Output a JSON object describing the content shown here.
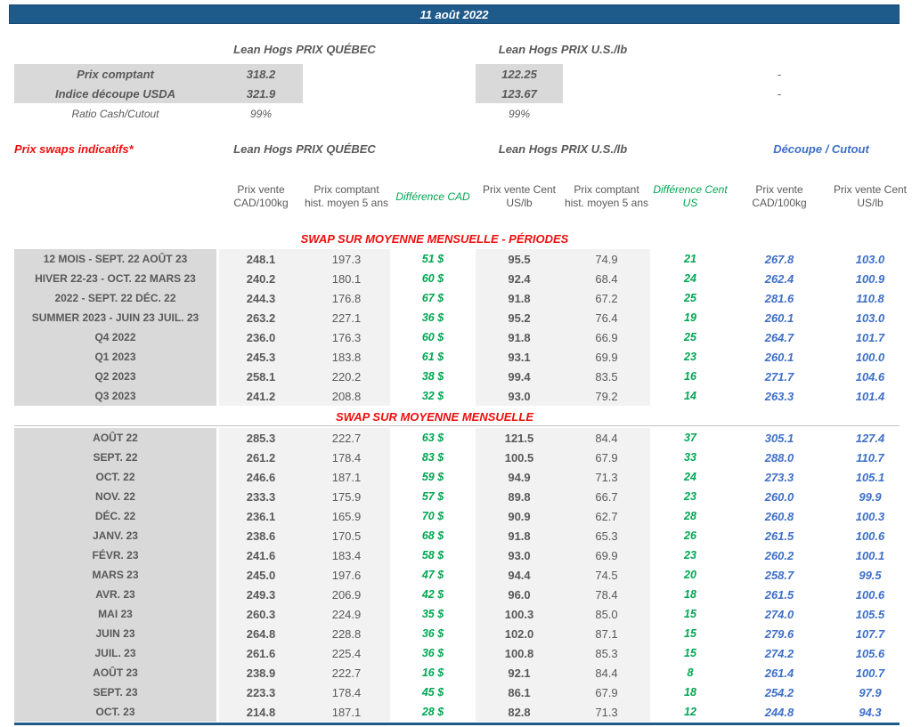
{
  "title_bar": {
    "date": "11 août 2022"
  },
  "colors": {
    "header_bar_blue": "#1E5A8A",
    "section_red": "#EE0E0E",
    "difference_green": "#00A651",
    "cutout_blue": "#3E6FC7",
    "text_gray": "#595959",
    "label_bg": "#D9D9D9",
    "value_bg": "#F2F2F2"
  },
  "summary": {
    "quebec_header": "Lean Hogs PRIX QUÉBEC",
    "us_header": "Lean Hogs PRIX U.S./lb",
    "rows": [
      {
        "label": "Prix comptant",
        "quebec": "318.2",
        "us": "122.25",
        "cutout": "-"
      },
      {
        "label": "Indice découpe USDA",
        "quebec": "321.9",
        "us": "123.67",
        "cutout": "-"
      },
      {
        "label": "Ratio Cash/Cutout",
        "quebec": "99%",
        "us": "99%",
        "cutout": ""
      }
    ]
  },
  "swaps": {
    "title": "Prix swaps indicatifs*",
    "quebec_header": "Lean Hogs PRIX QUÉBEC",
    "us_header": "Lean Hogs PRIX U.S./lb",
    "cutout_header": "Découpe / Cutout",
    "columns": [
      "Prix vente CAD/100kg",
      "Prix comptant hist. moyen 5 ans",
      "Différence CAD",
      "Prix vente Cent US/lb",
      "Prix comptant hist. moyen 5 ans",
      "Différence Cent US",
      "Prix vente CAD/100kg",
      "Prix vente Cent US/lb"
    ],
    "sections": [
      {
        "title": "SWAP SUR MOYENNE MENSUELLE - PÉRIODES",
        "rows": [
          {
            "label": "12 MOIS - SEPT. 22 AOÛT 23",
            "values": [
              "248.1",
              "197.3",
              "51 $",
              "95.5",
              "74.9",
              "21",
              "267.8",
              "103.0"
            ]
          },
          {
            "label": "HIVER 22-23 - OCT. 22 MARS 23",
            "values": [
              "240.2",
              "180.1",
              "60 $",
              "92.4",
              "68.4",
              "24",
              "262.4",
              "100.9"
            ]
          },
          {
            "label": "2022 - SEPT. 22 DÉC. 22",
            "values": [
              "244.3",
              "176.8",
              "67 $",
              "91.8",
              "67.2",
              "25",
              "281.6",
              "110.8"
            ]
          },
          {
            "label": "SUMMER 2023 - JUIN 23 JUIL. 23",
            "values": [
              "263.2",
              "227.1",
              "36 $",
              "95.2",
              "76.4",
              "19",
              "260.1",
              "103.0"
            ]
          },
          {
            "label": "Q4 2022",
            "values": [
              "236.0",
              "176.3",
              "60 $",
              "91.8",
              "66.9",
              "25",
              "264.7",
              "101.7"
            ]
          },
          {
            "label": "Q1 2023",
            "values": [
              "245.3",
              "183.8",
              "61 $",
              "93.1",
              "69.9",
              "23",
              "260.1",
              "100.0"
            ]
          },
          {
            "label": "Q2 2023",
            "values": [
              "258.1",
              "220.2",
              "38 $",
              "99.4",
              "83.5",
              "16",
              "271.7",
              "104.6"
            ]
          },
          {
            "label": "Q3 2023",
            "values": [
              "241.2",
              "208.8",
              "32 $",
              "93.0",
              "79.2",
              "14",
              "263.3",
              "101.4"
            ]
          }
        ]
      },
      {
        "title": "SWAP SUR MOYENNE MENSUELLE",
        "rows": [
          {
            "label": "AOÛT 22",
            "values": [
              "285.3",
              "222.7",
              "63 $",
              "121.5",
              "84.4",
              "37",
              "305.1",
              "127.4"
            ]
          },
          {
            "label": "SEPT. 22",
            "values": [
              "261.2",
              "178.4",
              "83 $",
              "100.5",
              "67.9",
              "33",
              "288.0",
              "110.7"
            ]
          },
          {
            "label": "OCT. 22",
            "values": [
              "246.6",
              "187.1",
              "59 $",
              "94.9",
              "71.3",
              "24",
              "273.3",
              "105.1"
            ]
          },
          {
            "label": "NOV. 22",
            "values": [
              "233.3",
              "175.9",
              "57 $",
              "89.8",
              "66.7",
              "23",
              "260.0",
              "99.9"
            ]
          },
          {
            "label": "DÉC. 22",
            "values": [
              "236.1",
              "165.9",
              "70 $",
              "90.9",
              "62.7",
              "28",
              "260.8",
              "100.3"
            ]
          },
          {
            "label": "JANV. 23",
            "values": [
              "238.6",
              "170.5",
              "68 $",
              "91.8",
              "65.3",
              "26",
              "261.5",
              "100.6"
            ]
          },
          {
            "label": "FÉVR. 23",
            "values": [
              "241.6",
              "183.4",
              "58 $",
              "93.0",
              "69.9",
              "23",
              "260.2",
              "100.1"
            ]
          },
          {
            "label": "MARS 23",
            "values": [
              "245.0",
              "197.6",
              "47 $",
              "94.4",
              "74.5",
              "20",
              "258.7",
              "99.5"
            ]
          },
          {
            "label": "AVR. 23",
            "values": [
              "249.3",
              "206.9",
              "42 $",
              "96.0",
              "78.4",
              "18",
              "261.5",
              "100.6"
            ]
          },
          {
            "label": "MAI 23",
            "values": [
              "260.3",
              "224.9",
              "35 $",
              "100.3",
              "85.0",
              "15",
              "274.0",
              "105.5"
            ]
          },
          {
            "label": "JUIN 23",
            "values": [
              "264.8",
              "228.8",
              "36 $",
              "102.0",
              "87.1",
              "15",
              "279.6",
              "107.7"
            ]
          },
          {
            "label": "JUIL. 23",
            "values": [
              "261.6",
              "225.4",
              "36 $",
              "100.8",
              "85.3",
              "15",
              "274.2",
              "105.6"
            ]
          },
          {
            "label": "AOÛT 23",
            "values": [
              "238.9",
              "222.7",
              "16 $",
              "92.1",
              "84.4",
              "8",
              "261.4",
              "100.7"
            ]
          },
          {
            "label": "SEPT. 23",
            "values": [
              "223.3",
              "178.4",
              "45 $",
              "86.1",
              "67.9",
              "18",
              "254.2",
              "97.9"
            ]
          },
          {
            "label": "OCT. 23",
            "values": [
              "214.8",
              "187.1",
              "28 $",
              "82.8",
              "71.3",
              "12",
              "244.8",
              "94.3"
            ]
          }
        ]
      }
    ]
  }
}
